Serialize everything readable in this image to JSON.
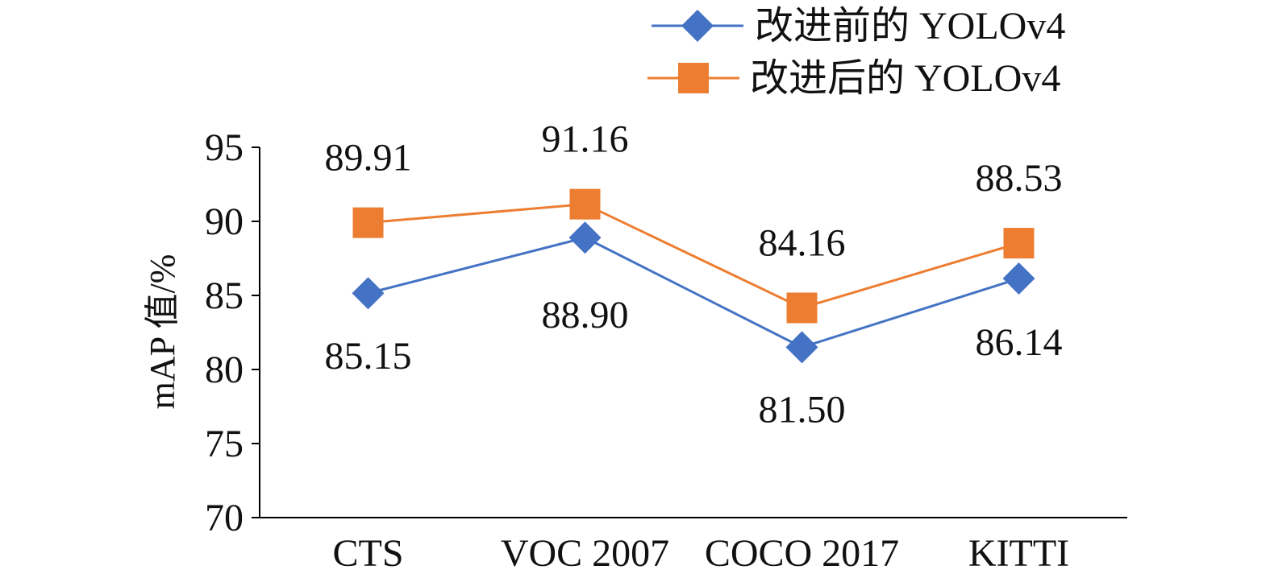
{
  "chart_data": {
    "type": "line",
    "categories": [
      "CTS",
      "VOC 2007",
      "COCO 2017",
      "KITTI"
    ],
    "series": [
      {
        "name": "改进前的 YOLOv4",
        "values": [
          85.15,
          88.9,
          81.5,
          86.14
        ],
        "labels": [
          "85.15",
          "88.90",
          "81.50",
          "86.14"
        ],
        "color": "#4472C4",
        "marker": "diamond"
      },
      {
        "name": "改进后的 YOLOv4",
        "values": [
          89.91,
          91.16,
          84.16,
          88.53
        ],
        "labels": [
          "89.91",
          "91.16",
          "84.16",
          "88.53"
        ],
        "color": "#ED7D31",
        "marker": "square"
      }
    ],
    "ylabel": "mAP 值/%",
    "xlabel": "",
    "ylim": [
      70,
      95
    ],
    "yticks": [
      "70",
      "75",
      "80",
      "85",
      "90",
      "95"
    ],
    "grid": false,
    "legend_position": "top-right"
  }
}
